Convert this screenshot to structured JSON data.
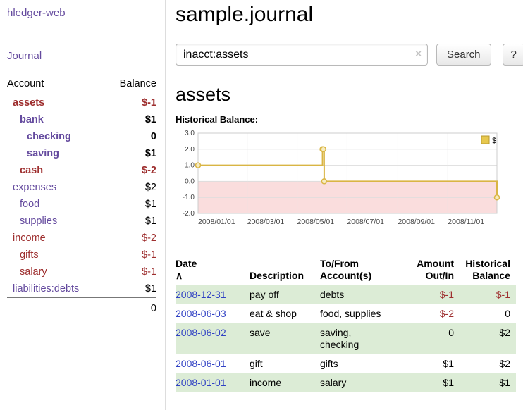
{
  "sidebar": {
    "app_title": "hledger-web",
    "journal_link": "Journal",
    "account_header": "Account",
    "balance_header": "Balance",
    "accounts": [
      {
        "name": "assets",
        "indent": 0,
        "bold": true,
        "name_negative": true,
        "balance": "$-1",
        "balance_negative": true
      },
      {
        "name": "bank",
        "indent": 1,
        "bold": true,
        "name_negative": false,
        "balance": "$1",
        "balance_negative": false
      },
      {
        "name": "checking",
        "indent": 2,
        "bold": true,
        "name_negative": false,
        "balance": "0",
        "balance_negative": false
      },
      {
        "name": "saving",
        "indent": 2,
        "bold": true,
        "name_negative": false,
        "balance": "$1",
        "balance_negative": false
      },
      {
        "name": "cash",
        "indent": 1,
        "bold": true,
        "name_negative": true,
        "balance": "$-2",
        "balance_negative": true
      },
      {
        "name": "expenses",
        "indent": 0,
        "bold": false,
        "name_negative": false,
        "balance": "$2",
        "balance_negative": false
      },
      {
        "name": "food",
        "indent": 1,
        "bold": false,
        "name_negative": false,
        "balance": "$1",
        "balance_negative": false
      },
      {
        "name": "supplies",
        "indent": 1,
        "bold": false,
        "name_negative": false,
        "balance": "$1",
        "balance_negative": false
      },
      {
        "name": "income",
        "indent": 0,
        "bold": false,
        "name_negative": true,
        "balance": "$-2",
        "balance_negative": true
      },
      {
        "name": "gifts",
        "indent": 1,
        "bold": false,
        "name_negative": true,
        "balance": "$-1",
        "balance_negative": true
      },
      {
        "name": "salary",
        "indent": 1,
        "bold": false,
        "name_negative": true,
        "balance": "$-1",
        "balance_negative": true
      },
      {
        "name": "liabilities:debts",
        "indent": 0,
        "bold": false,
        "name_negative": false,
        "balance": "$1",
        "balance_negative": false
      }
    ],
    "total": "0"
  },
  "main": {
    "title": "sample.journal",
    "search": {
      "value": "inacct:assets",
      "clear_icon": "×",
      "button_label": "Search",
      "help_label": "?"
    },
    "account_heading": "assets",
    "chart_label": "Historical Balance:"
  },
  "chart_data": {
    "type": "line",
    "title": "Historical Balance",
    "step": true,
    "xrange": [
      "2008-01-01",
      "2008-12-31"
    ],
    "ylim": [
      -2.0,
      3.0
    ],
    "yticks": [
      3.0,
      2.0,
      1.0,
      0.0,
      -1.0,
      -2.0
    ],
    "xticks": [
      {
        "date": "2008-01-01",
        "label": "2008/01/01"
      },
      {
        "date": "2008-03-01",
        "label": "2008/03/01"
      },
      {
        "date": "2008-05-01",
        "label": "2008/05/01"
      },
      {
        "date": "2008-07-01",
        "label": "2008/07/01"
      },
      {
        "date": "2008-09-01",
        "label": "2008/09/01"
      },
      {
        "date": "2008-11-01",
        "label": "2008/11/01"
      }
    ],
    "series": [
      {
        "name": "$",
        "color": "#d9b544",
        "points": [
          [
            "2008-01-01",
            1
          ],
          [
            "2008-06-01",
            2
          ],
          [
            "2008-06-02",
            2
          ],
          [
            "2008-06-03",
            0
          ],
          [
            "2008-12-31",
            -1
          ]
        ]
      }
    ],
    "colors": {
      "negative_region": "#fadddd",
      "marker_fill": "#f7ecc0",
      "legend_fill": "#e7c84e",
      "legend_border": "#b89a2e",
      "grid": "#dddddd",
      "border": "#cccccc"
    },
    "legend_position": "top-right"
  },
  "register": {
    "headers": [
      "Date",
      "Description",
      "To/From\nAccount(s)",
      "Amount\nOut/In",
      "Historical\nBalance"
    ],
    "sort_indicator": "∧",
    "rows": [
      {
        "date": "2008-12-31",
        "description": "pay off",
        "accounts": "debts",
        "amount": "$-1",
        "amount_negative": true,
        "balance": "$-1",
        "balance_negative": true
      },
      {
        "date": "2008-06-03",
        "description": "eat & shop",
        "accounts": "food, supplies",
        "amount": "$-2",
        "amount_negative": true,
        "balance": "0",
        "balance_negative": false
      },
      {
        "date": "2008-06-02",
        "description": "save",
        "accounts": "saving,\nchecking",
        "amount": "0",
        "amount_negative": false,
        "balance": "$2",
        "balance_negative": false
      },
      {
        "date": "2008-06-01",
        "description": "gift",
        "accounts": "gifts",
        "amount": "$1",
        "amount_negative": false,
        "balance": "$2",
        "balance_negative": false
      },
      {
        "date": "2008-01-01",
        "description": "income",
        "accounts": "salary",
        "amount": "$1",
        "amount_negative": false,
        "balance": "$1",
        "balance_negative": false
      }
    ]
  }
}
